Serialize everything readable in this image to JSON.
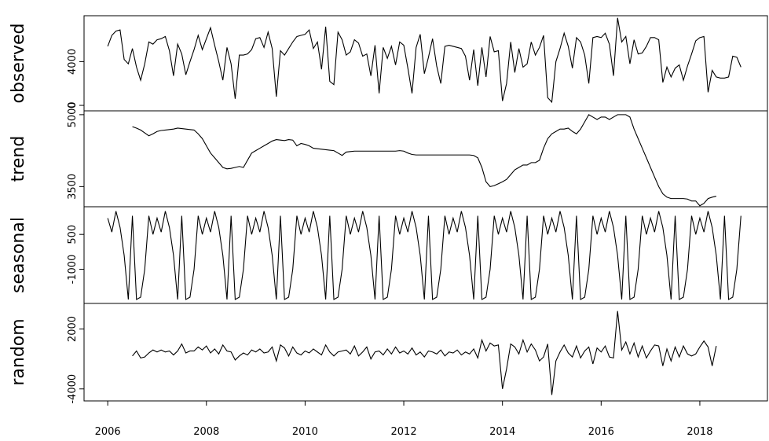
{
  "chart_data": {
    "type": "line",
    "color": "#000000",
    "xlim": [
      2005.52,
      2019.37
    ],
    "xticks": [
      2006,
      2008,
      2010,
      2012,
      2014,
      2016,
      2018
    ],
    "x": [
      2006,
      2006.083,
      2006.167,
      2006.25,
      2006.333,
      2006.417,
      2006.5,
      2006.583,
      2006.667,
      2006.75,
      2006.833,
      2006.917,
      2007,
      2007.083,
      2007.167,
      2007.25,
      2007.333,
      2007.417,
      2007.5,
      2007.583,
      2007.667,
      2007.75,
      2007.833,
      2007.917,
      2008,
      2008.083,
      2008.167,
      2008.25,
      2008.333,
      2008.417,
      2008.5,
      2008.583,
      2008.667,
      2008.75,
      2008.833,
      2008.917,
      2009,
      2009.083,
      2009.167,
      2009.25,
      2009.333,
      2009.417,
      2009.5,
      2009.583,
      2009.667,
      2009.75,
      2009.833,
      2009.917,
      2010,
      2010.083,
      2010.167,
      2010.25,
      2010.333,
      2010.417,
      2010.5,
      2010.583,
      2010.667,
      2010.75,
      2010.833,
      2010.917,
      2011,
      2011.083,
      2011.167,
      2011.25,
      2011.333,
      2011.417,
      2011.5,
      2011.583,
      2011.667,
      2011.75,
      2011.833,
      2011.917,
      2012,
      2012.083,
      2012.167,
      2012.25,
      2012.333,
      2012.417,
      2012.5,
      2012.583,
      2012.667,
      2012.75,
      2012.833,
      2012.917,
      2013,
      2013.083,
      2013.167,
      2013.25,
      2013.333,
      2013.417,
      2013.5,
      2013.583,
      2013.667,
      2013.75,
      2013.833,
      2013.917,
      2014,
      2014.083,
      2014.167,
      2014.25,
      2014.333,
      2014.417,
      2014.5,
      2014.583,
      2014.667,
      2014.75,
      2014.833,
      2014.917,
      2015,
      2015.083,
      2015.167,
      2015.25,
      2015.333,
      2015.417,
      2015.5,
      2015.583,
      2015.667,
      2015.75,
      2015.833,
      2015.917,
      2016,
      2016.083,
      2016.167,
      2016.25,
      2016.333,
      2016.417,
      2016.5,
      2016.583,
      2016.667,
      2016.75,
      2016.833,
      2016.917,
      2017,
      2017.083,
      2017.167,
      2017.25,
      2017.333,
      2017.417,
      2017.5,
      2017.583,
      2017.667,
      2017.75,
      2017.833,
      2017.917,
      2018,
      2018.083,
      2018.167,
      2018.25,
      2018.333,
      2018.417,
      2018.5,
      2018.583,
      2018.667,
      2018.75,
      2018.833
    ],
    "panels": [
      {
        "ylabel": "observed",
        "ylim": [
          -500,
          8200
        ],
        "yticks": [
          0,
          4000
        ],
        "values": [
          5400,
          6400,
          6800,
          6900,
          4200,
          3800,
          5200,
          3500,
          2300,
          3800,
          5800,
          5600,
          6000,
          6100,
          6300,
          5000,
          2700,
          5600,
          4700,
          2800,
          4000,
          5100,
          6400,
          5100,
          6100,
          7100,
          5500,
          4000,
          2300,
          5300,
          3800,
          600,
          4600,
          4600,
          4700,
          5100,
          6100,
          6200,
          5300,
          6700,
          5200,
          800,
          5000,
          4600,
          5200,
          5800,
          6300,
          6400,
          6500,
          6900,
          5200,
          5800,
          3300,
          7200,
          2200,
          1900,
          6700,
          6000,
          4600,
          4900,
          6000,
          5700,
          4500,
          4700,
          2700,
          5500,
          1100,
          5300,
          4300,
          5400,
          3700,
          5800,
          5500,
          3400,
          1100,
          5300,
          6500,
          2900,
          4400,
          6100,
          3600,
          2000,
          5400,
          5500,
          5400,
          5300,
          5200,
          4500,
          2300,
          5100,
          1800,
          5300,
          2600,
          6300,
          4900,
          5000,
          400,
          2000,
          5800,
          3000,
          5200,
          3500,
          3800,
          5800,
          4600,
          5300,
          6400,
          700,
          300,
          4000,
          5200,
          6600,
          5400,
          3400,
          6200,
          5800,
          4600,
          2000,
          6200,
          6300,
          6200,
          6600,
          5600,
          2700,
          8000,
          5800,
          6300,
          3800,
          6000,
          4700,
          4800,
          5400,
          6200,
          6200,
          6000,
          2100,
          3500,
          2600,
          3400,
          3700,
          2300,
          3600,
          4700,
          5900,
          6200,
          6300,
          1200,
          3200,
          2600,
          2500,
          2500,
          2600,
          4500,
          4400,
          3500
        ]
      },
      {
        "ylabel": "trend",
        "ylim": [
          3080,
          5080
        ],
        "yticks": [
          3500,
          5000
        ],
        "values": [
          null,
          null,
          null,
          null,
          null,
          null,
          4750,
          4720,
          4680,
          4620,
          4560,
          4600,
          4650,
          4670,
          4680,
          4690,
          4700,
          4720,
          4710,
          4700,
          4690,
          4680,
          4600,
          4500,
          4350,
          4200,
          4100,
          4000,
          3900,
          3870,
          3880,
          3900,
          3920,
          3900,
          4050,
          4200,
          4250,
          4300,
          4350,
          4400,
          4450,
          4480,
          4470,
          4460,
          4480,
          4470,
          4350,
          4400,
          4380,
          4350,
          4300,
          4290,
          4280,
          4270,
          4260,
          4250,
          4200,
          4150,
          4220,
          4230,
          4240,
          4240,
          4240,
          4240,
          4240,
          4240,
          4240,
          4240,
          4240,
          4240,
          4240,
          4250,
          4240,
          4200,
          4170,
          4160,
          4160,
          4160,
          4160,
          4160,
          4160,
          4160,
          4160,
          4160,
          4160,
          4160,
          4160,
          4160,
          4160,
          4150,
          4100,
          3900,
          3600,
          3500,
          3520,
          3560,
          3600,
          3650,
          3750,
          3850,
          3900,
          3950,
          3950,
          4000,
          4000,
          4050,
          4300,
          4500,
          4600,
          4650,
          4700,
          4700,
          4720,
          4650,
          4600,
          4700,
          4850,
          5000,
          4950,
          4900,
          4950,
          4950,
          4900,
          4950,
          5000,
          5000,
          5000,
          4950,
          4700,
          4500,
          4300,
          4100,
          3900,
          3700,
          3500,
          3350,
          3280,
          3250,
          3250,
          3250,
          3250,
          3240,
          3200,
          3200,
          3100,
          3150,
          3250,
          3280,
          3300,
          null,
          null,
          null,
          null,
          null,
          null
        ]
      },
      {
        "ylabel": "seasonal",
        "ylim": [
          -2470,
          1690
        ],
        "yticks": [
          -1000,
          500
        ],
        "values": [
          1200,
          600,
          1500,
          800,
          -400,
          -2300,
          1300,
          -2300,
          -2200,
          -1000,
          1300,
          500,
          1200,
          600,
          1500,
          800,
          -400,
          -2300,
          1300,
          -2300,
          -2200,
          -1000,
          1300,
          500,
          1200,
          600,
          1500,
          800,
          -400,
          -2300,
          1300,
          -2300,
          -2200,
          -1000,
          1300,
          500,
          1200,
          600,
          1500,
          800,
          -400,
          -2300,
          1300,
          -2300,
          -2200,
          -1000,
          1300,
          500,
          1200,
          600,
          1500,
          800,
          -400,
          -2300,
          1300,
          -2300,
          -2200,
          -1000,
          1300,
          500,
          1200,
          600,
          1500,
          800,
          -400,
          -2300,
          1300,
          -2300,
          -2200,
          -1000,
          1300,
          500,
          1200,
          600,
          1500,
          800,
          -400,
          -2300,
          1300,
          -2300,
          -2200,
          -1000,
          1300,
          500,
          1200,
          600,
          1500,
          800,
          -400,
          -2300,
          1300,
          -2300,
          -2200,
          -1000,
          1300,
          500,
          1200,
          600,
          1500,
          800,
          -400,
          -2300,
          1300,
          -2300,
          -2200,
          -1000,
          1300,
          500,
          1200,
          600,
          1500,
          800,
          -400,
          -2300,
          1300,
          -2300,
          -2200,
          -1000,
          1300,
          500,
          1200,
          600,
          1500,
          800,
          -400,
          -2300,
          1300,
          -2300,
          -2200,
          -1000,
          1300,
          500,
          1200,
          600,
          1500,
          800,
          -400,
          -2300,
          1300,
          -2300,
          -2200,
          -1000,
          1300,
          500,
          1200,
          600,
          1500,
          800,
          -400,
          -2300,
          1300,
          -2300,
          -2200,
          -1000,
          1300
        ]
      },
      {
        "ylabel": "random",
        "ylim": [
          -5200,
          4560
        ],
        "yticks": [
          -4000,
          2000
        ],
        "values": [
          null,
          null,
          null,
          null,
          null,
          null,
          -700,
          -200,
          -900,
          -800,
          -400,
          -100,
          -300,
          -100,
          -300,
          -200,
          -600,
          -200,
          500,
          -400,
          -200,
          -200,
          200,
          -100,
          300,
          -400,
          0,
          -500,
          400,
          -200,
          -300,
          -1100,
          -700,
          -400,
          -600,
          -100,
          -300,
          0,
          -400,
          -300,
          200,
          -1200,
          400,
          100,
          -700,
          200,
          -400,
          -600,
          -200,
          -400,
          0,
          -300,
          -600,
          400,
          -300,
          -700,
          -300,
          -200,
          -100,
          -500,
          300,
          -700,
          -300,
          200,
          -1000,
          -300,
          -200,
          -600,
          0,
          -500,
          200,
          -400,
          -200,
          -500,
          100,
          -600,
          -300,
          -800,
          -200,
          -300,
          -500,
          -100,
          -700,
          -300,
          -400,
          -100,
          -600,
          -300,
          -500,
          0,
          -900,
          900,
          -200,
          600,
          300,
          400,
          -4000,
          -2000,
          500,
          200,
          -500,
          900,
          -300,
          500,
          -100,
          -1200,
          -800,
          500,
          -4600,
          -1200,
          -300,
          400,
          -400,
          -800,
          300,
          -900,
          -200,
          200,
          -1500,
          100,
          -300,
          300,
          -800,
          -900,
          3800,
          -100,
          700,
          -500,
          600,
          -800,
          300,
          -900,
          -200,
          400,
          300,
          -1700,
          0,
          -1200,
          200,
          -800,
          300,
          -500,
          -700,
          -500,
          200,
          800,
          200,
          -1700,
          300,
          null,
          null,
          null,
          null,
          null,
          null
        ]
      }
    ]
  }
}
